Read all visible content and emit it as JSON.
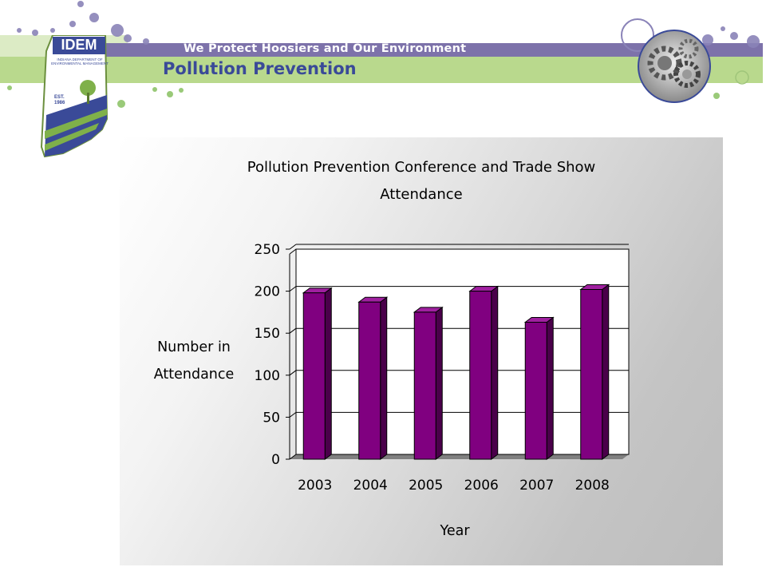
{
  "header": {
    "tagline": "We Protect Hoosiers and Our Environment",
    "slide_title": "Pollution Prevention",
    "logo": {
      "name": "IDEM",
      "line1": "INDIANA DEPARTMENT OF",
      "line2": "ENVIRONMENTAL MANAGEMENT",
      "est": "EST.",
      "year": "1986"
    }
  },
  "colors": {
    "bar_front": "#800080",
    "bar_side": "#4a004a",
    "bar_top": "#a020a0",
    "title_blue": "#3a4a98",
    "band_purple": "#7d72aa",
    "band_green": "#b9d98d"
  },
  "chart_data": {
    "type": "bar",
    "title_line1": "Pollution Prevention Conference and Trade Show",
    "title_line2": "Attendance",
    "categories": [
      "2003",
      "2004",
      "2005",
      "2006",
      "2007",
      "2008"
    ],
    "values": [
      198,
      187,
      175,
      200,
      163,
      202
    ],
    "xlabel": "Year",
    "ylabel_line1": "Number in",
    "ylabel_line2": "Attendance",
    "ylim": [
      0,
      250
    ],
    "yticks": [
      "0",
      "50",
      "100",
      "150",
      "200",
      "250"
    ],
    "grid": true,
    "style": "3d-column"
  }
}
